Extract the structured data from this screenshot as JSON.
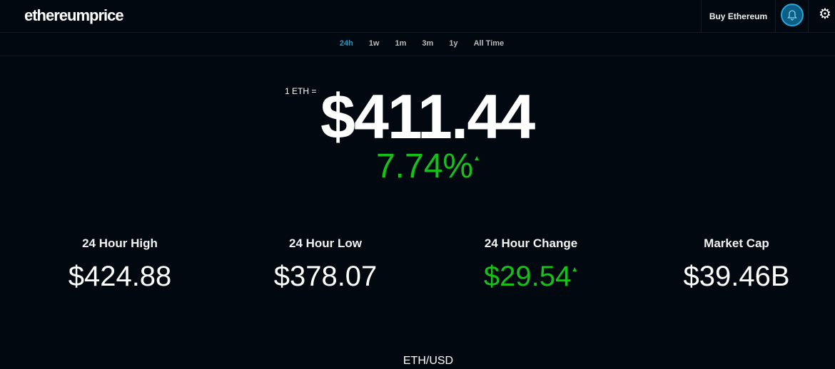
{
  "header": {
    "logo": "ethereumprice",
    "buy_label": "Buy Ethereum",
    "bell_icon": "bell-icon",
    "settings_icon": "gear-icon"
  },
  "ranges": [
    {
      "label": "24h",
      "active": true
    },
    {
      "label": "1w"
    },
    {
      "label": "1m"
    },
    {
      "label": "3m"
    },
    {
      "label": "1y"
    },
    {
      "label": "All Time"
    }
  ],
  "price": {
    "prefix": "1 ETH =",
    "value": "$411.44",
    "change_pct": "7.74%",
    "direction": "up"
  },
  "stats": [
    {
      "label": "24 Hour High",
      "value": "$424.88"
    },
    {
      "label": "24 Hour Low",
      "value": "$378.07"
    },
    {
      "label": "24 Hour Change",
      "value": "$29.54",
      "direction": "up"
    },
    {
      "label": "Market Cap",
      "value": "$39.46B"
    }
  ],
  "chart": {
    "pair": "ETH/USD"
  },
  "colors": {
    "accent": "#1e9ac9",
    "positive": "#17c017",
    "background": "#02080f"
  }
}
